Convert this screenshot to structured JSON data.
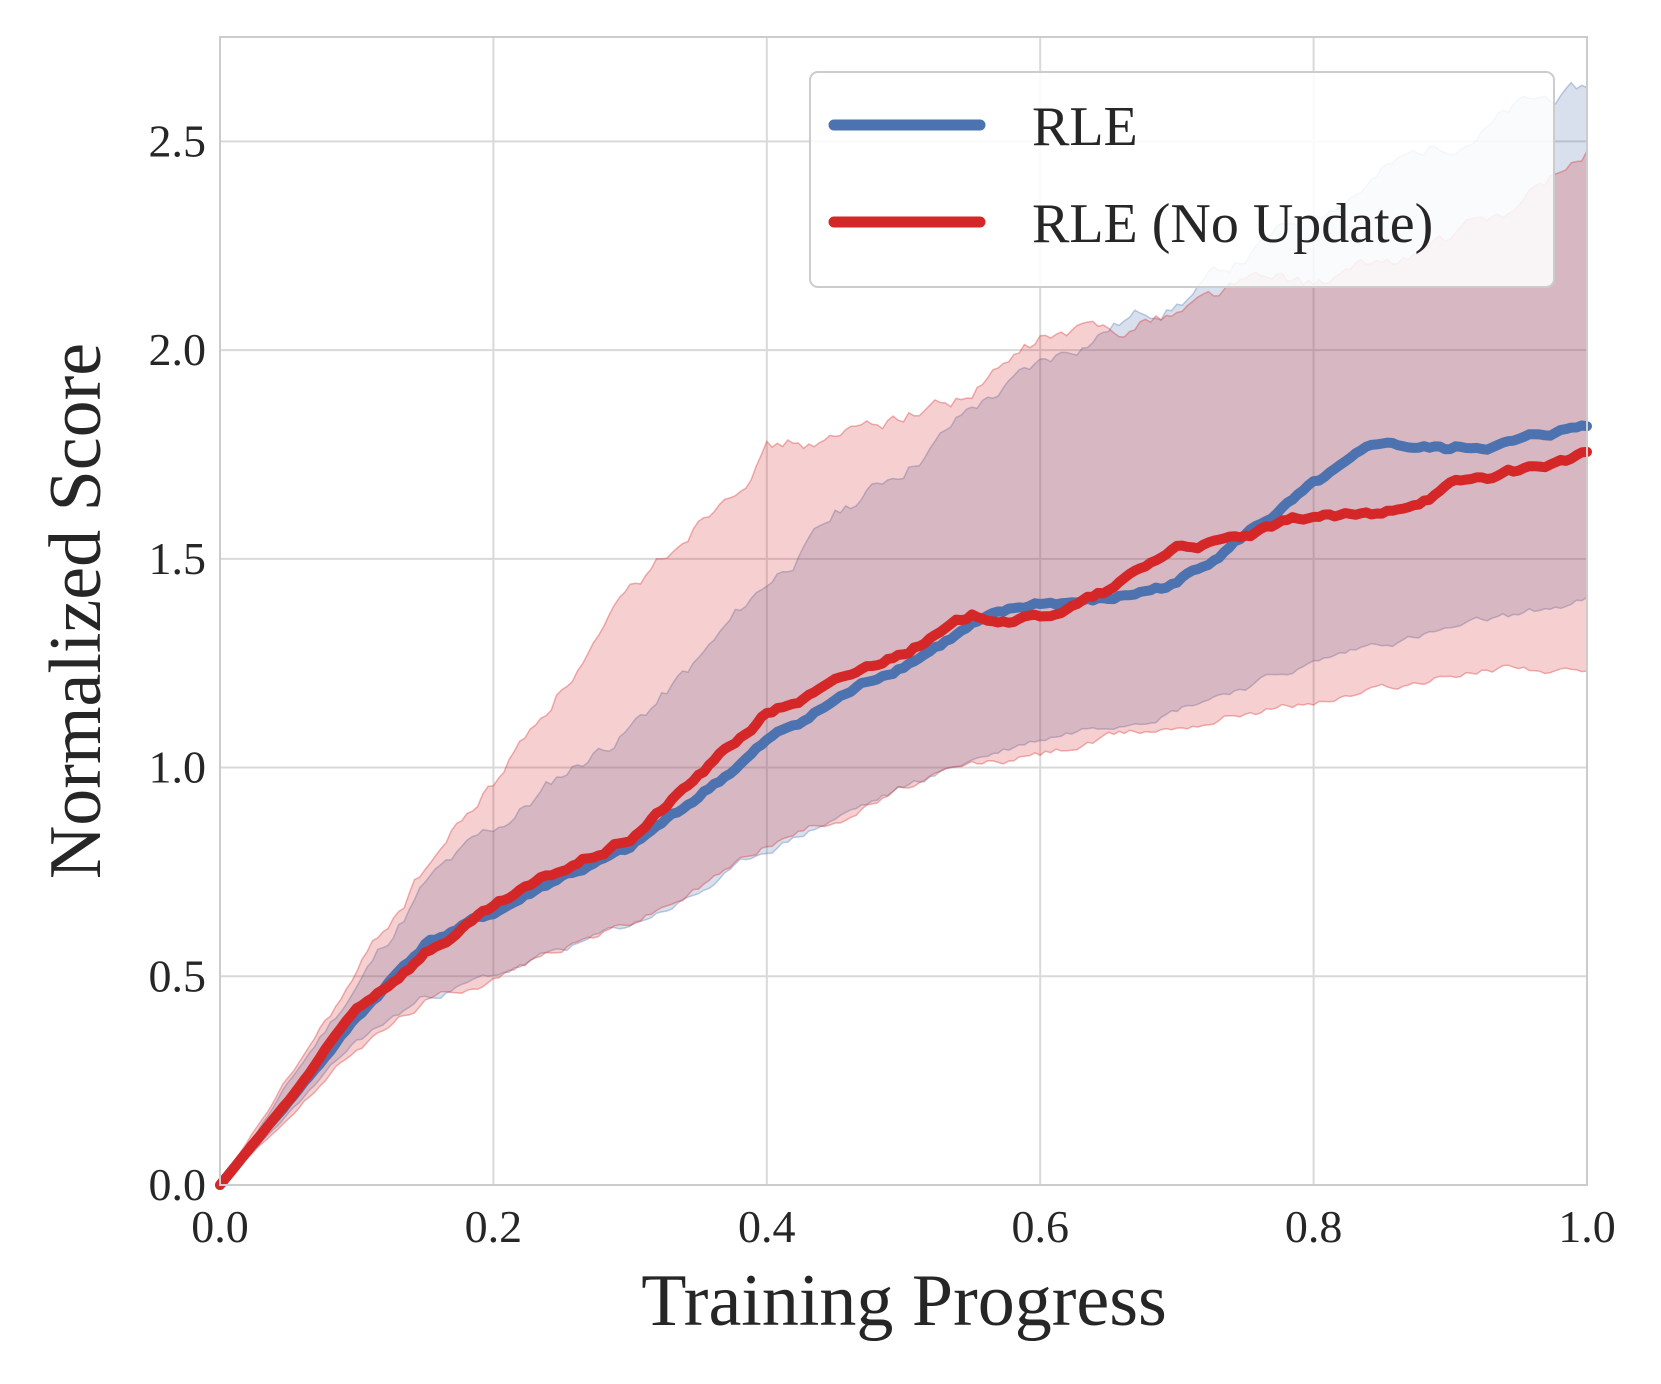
{
  "chart_data": {
    "type": "line",
    "title": "",
    "xlabel": "Training Progress",
    "ylabel": "Normalized Score",
    "xlim": [
      0,
      1
    ],
    "ylim": [
      0,
      2.75
    ],
    "xticks": [
      0.0,
      0.2,
      0.4,
      0.6,
      0.8,
      1.0
    ],
    "xtick_labels": [
      "0.0",
      "0.2",
      "0.4",
      "0.6",
      "0.8",
      "1.0"
    ],
    "yticks": [
      0.0,
      0.5,
      1.0,
      1.5,
      2.0,
      2.5
    ],
    "ytick_labels": [
      "0.0",
      "0.5",
      "1.0",
      "1.5",
      "2.0",
      "2.5"
    ],
    "grid": true,
    "legend_position": "top-right",
    "x": [
      0.0,
      0.05,
      0.1,
      0.15,
      0.2,
      0.25,
      0.3,
      0.35,
      0.4,
      0.45,
      0.5,
      0.55,
      0.6,
      0.65,
      0.7,
      0.75,
      0.8,
      0.85,
      0.9,
      0.95,
      1.0
    ],
    "series": [
      {
        "name": "RLE",
        "color": "#4c72b0",
        "values": [
          0.0,
          0.2,
          0.4,
          0.58,
          0.65,
          0.74,
          0.8,
          0.93,
          1.06,
          1.16,
          1.25,
          1.34,
          1.39,
          1.4,
          1.44,
          1.56,
          1.67,
          1.77,
          1.76,
          1.78,
          1.82
        ],
        "lower": [
          0.0,
          0.17,
          0.34,
          0.45,
          0.5,
          0.56,
          0.62,
          0.7,
          0.8,
          0.88,
          0.95,
          1.02,
          1.07,
          1.11,
          1.15,
          1.2,
          1.25,
          1.3,
          1.33,
          1.36,
          1.4
        ],
        "upper": [
          0.0,
          0.24,
          0.48,
          0.72,
          0.84,
          0.98,
          1.1,
          1.25,
          1.44,
          1.6,
          1.72,
          1.86,
          1.96,
          2.06,
          2.12,
          2.22,
          2.33,
          2.43,
          2.5,
          2.58,
          2.62
        ]
      },
      {
        "name": "RLE (No Update)",
        "color": "#d62728",
        "values": [
          0.0,
          0.2,
          0.42,
          0.56,
          0.66,
          0.75,
          0.83,
          0.98,
          1.13,
          1.2,
          1.28,
          1.36,
          1.36,
          1.42,
          1.53,
          1.55,
          1.6,
          1.6,
          1.68,
          1.71,
          1.75
        ],
        "lower": [
          0.0,
          0.16,
          0.33,
          0.44,
          0.5,
          0.57,
          0.63,
          0.71,
          0.82,
          0.88,
          0.95,
          1.0,
          1.03,
          1.07,
          1.1,
          1.14,
          1.16,
          1.19,
          1.22,
          1.25,
          1.22
        ],
        "upper": [
          0.0,
          0.25,
          0.5,
          0.76,
          0.96,
          1.2,
          1.4,
          1.6,
          1.78,
          1.78,
          1.85,
          1.9,
          2.02,
          2.05,
          2.1,
          2.17,
          2.15,
          2.2,
          2.26,
          2.34,
          2.48
        ]
      }
    ]
  }
}
